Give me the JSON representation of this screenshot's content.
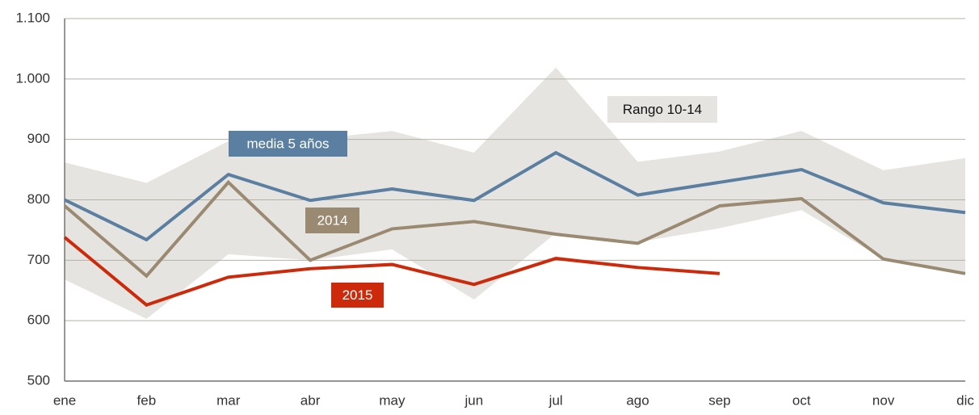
{
  "chart_data": {
    "type": "line",
    "categories": [
      "ene",
      "feb",
      "mar",
      "abr",
      "may",
      "jun",
      "jul",
      "ago",
      "sep",
      "oct",
      "nov",
      "dic"
    ],
    "band": {
      "name": "Rango 10-14",
      "color": "#e6e4e0",
      "upper": [
        862,
        828,
        897,
        900,
        914,
        878,
        1019,
        863,
        880,
        914,
        849,
        869
      ],
      "lower": [
        668,
        603,
        710,
        700,
        718,
        635,
        745,
        730,
        753,
        783,
        702,
        678
      ]
    },
    "series": [
      {
        "name": "media 5 años",
        "color": "#5a7fa0",
        "values": [
          800,
          734,
          842,
          799,
          818,
          799,
          878,
          808,
          829,
          850,
          795,
          779
        ]
      },
      {
        "name": "2014",
        "color": "#9a8a72",
        "values": [
          790,
          674,
          829,
          700,
          752,
          764,
          743,
          728,
          790,
          802,
          702,
          678
        ]
      },
      {
        "name": "2015",
        "color": "#cc2a0a",
        "values": [
          738,
          626,
          672,
          686,
          693,
          660,
          703,
          688,
          678,
          null,
          null,
          null
        ]
      }
    ],
    "ylim": [
      500,
      1100
    ],
    "yticks": [
      500,
      600,
      700,
      800,
      900,
      {
        "value": 1000,
        "label": "1.000"
      },
      {
        "value": 1100,
        "label": "1.100"
      }
    ],
    "grid": true
  }
}
